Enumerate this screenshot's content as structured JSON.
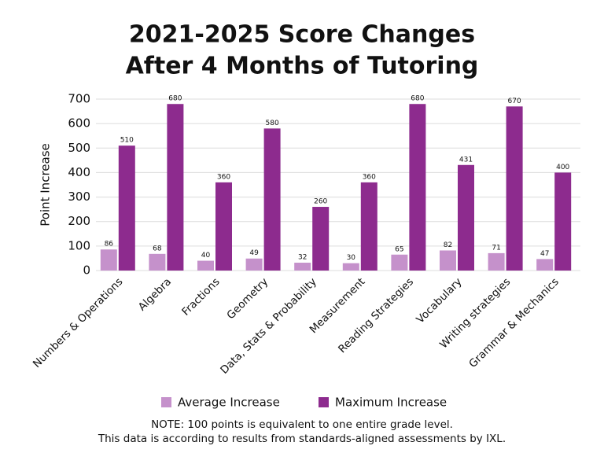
{
  "chart_data": {
    "type": "bar",
    "title": [
      "2021-2025 Score Changes",
      "After 4 Months of Tutoring"
    ],
    "y_label": "Point Increase",
    "categories": [
      "Numbers & Operations",
      "Algebra",
      "Fractions",
      "Geometry",
      "Data, Stats & Probability",
      "Measurement",
      "Reading Strategies",
      "Vocabulary",
      "Writing strategies",
      "Grammar & Mechanics"
    ],
    "series": [
      {
        "name": "Average Increase",
        "color": "#c591cb",
        "values": [
          86,
          68,
          40,
          49,
          32,
          30,
          65,
          82,
          71,
          47
        ]
      },
      {
        "name": "Maximum Increase",
        "color": "#8d2b8e",
        "values": [
          510,
          680,
          360,
          580,
          260,
          360,
          680,
          431,
          670,
          400
        ]
      }
    ],
    "ylim": [
      0,
      700
    ],
    "yticks": [
      0,
      100,
      200,
      300,
      400,
      500,
      600,
      700
    ],
    "grid": true,
    "legend": "bottom",
    "notes": [
      "NOTE:  100 points is equivalent to one entire grade level.",
      "This data is according to results from standards-aligned assessments by IXL."
    ]
  }
}
